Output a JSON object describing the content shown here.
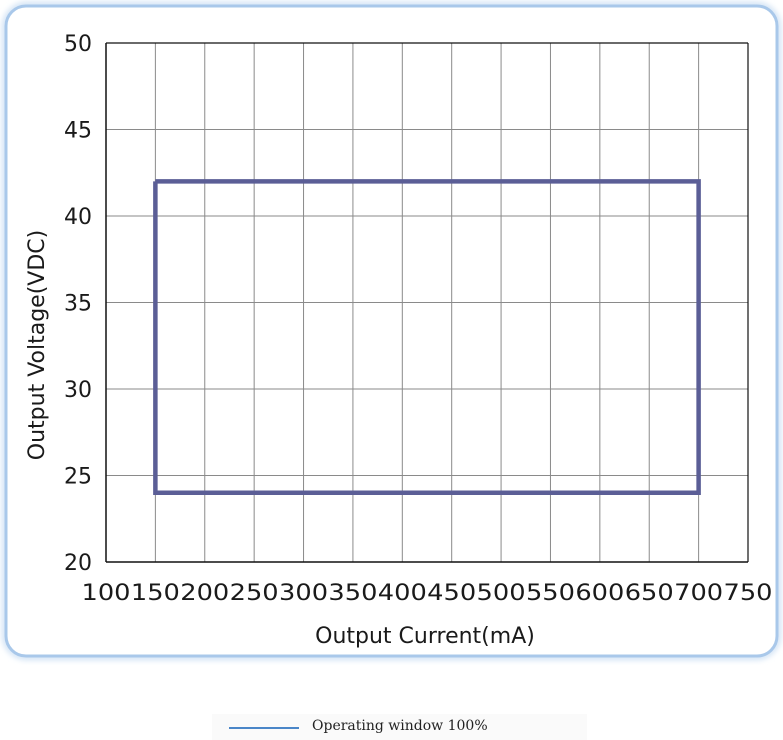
{
  "chart_data": {
    "type": "line",
    "title": "",
    "xlabel": "Output Current(mA)",
    "ylabel": "Output Voltage(VDC)",
    "xlim": [
      100,
      750
    ],
    "ylim": [
      20,
      50
    ],
    "x_ticks": [
      100,
      150,
      200,
      250,
      300,
      350,
      400,
      450,
      500,
      550,
      600,
      650,
      700,
      750
    ],
    "y_ticks": [
      20,
      25,
      30,
      35,
      40,
      45,
      50
    ],
    "grid": true,
    "legend_position": "bottom-center",
    "series": [
      {
        "name": "Operating window 100%",
        "color": "#5b5e96",
        "legend_color": "#4a86c8",
        "x": [
          150,
          700,
          700,
          150,
          150
        ],
        "y": [
          42,
          42,
          24,
          24,
          42
        ]
      }
    ]
  },
  "legend": {
    "label": "Operating window 100%"
  },
  "colors": {
    "frame_border": "#a9c8ea",
    "grid": "#8a8a8a",
    "axis": "#111111"
  }
}
